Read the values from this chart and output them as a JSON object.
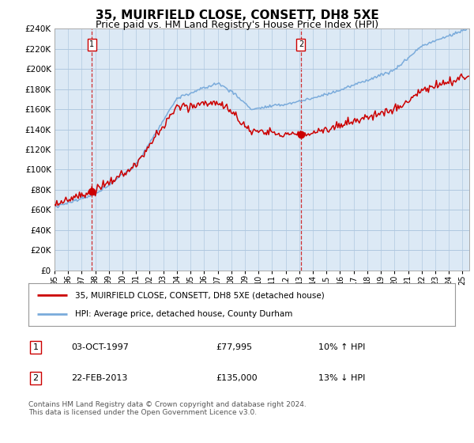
{
  "title": "35, MUIRFIELD CLOSE, CONSETT, DH8 5XE",
  "subtitle": "Price paid vs. HM Land Registry's House Price Index (HPI)",
  "legend_line1": "35, MUIRFIELD CLOSE, CONSETT, DH8 5XE (detached house)",
  "legend_line2": "HPI: Average price, detached house, County Durham",
  "table_row1_num": "1",
  "table_row1_date": "03-OCT-1997",
  "table_row1_price": "£77,995",
  "table_row1_hpi": "10% ↑ HPI",
  "table_row2_num": "2",
  "table_row2_date": "22-FEB-2013",
  "table_row2_price": "£135,000",
  "table_row2_hpi": "13% ↓ HPI",
  "footer": "Contains HM Land Registry data © Crown copyright and database right 2024.\nThis data is licensed under the Open Government Licence v3.0.",
  "sale1_year": 1997.75,
  "sale1_value": 77995,
  "sale2_year": 2013.12,
  "sale2_value": 135000,
  "ymin": 0,
  "ymax": 240000,
  "xmin": 1995.0,
  "xmax": 2025.5,
  "red_color": "#cc0000",
  "blue_color": "#7aabdb",
  "plot_bg": "#dce9f5",
  "bg_color": "#ffffff",
  "grid_color": "#b0c8e0",
  "title_fontsize": 11,
  "subtitle_fontsize": 9
}
